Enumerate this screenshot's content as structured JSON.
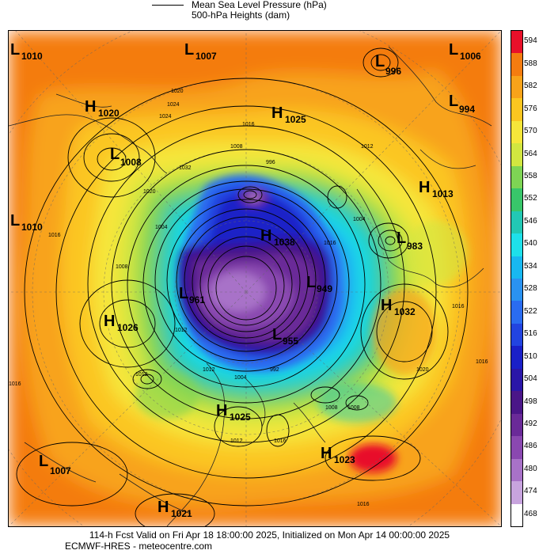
{
  "legend": {
    "line1": "Mean Sea Level Pressure (hPa)",
    "line2": "500-hPa Heights (dam)"
  },
  "colorbar": {
    "levels": [
      "594",
      "588",
      "582",
      "576",
      "570",
      "564",
      "558",
      "552",
      "546",
      "540",
      "534",
      "528",
      "522",
      "516",
      "510",
      "504",
      "498",
      "492",
      "486",
      "480",
      "474",
      "468"
    ],
    "colors": [
      "#e8102a",
      "#f47c10",
      "#f8a31a",
      "#fbc620",
      "#f6e63a",
      "#d2e640",
      "#7ed454",
      "#38c66a",
      "#22c8b4",
      "#1ee0ea",
      "#18b8f0",
      "#2a92f0",
      "#2a6cf0",
      "#2244e0",
      "#1a20c8",
      "#2a16a8",
      "#4a1688",
      "#6a2a98",
      "#8a48b0",
      "#a872c8",
      "#c8a4de",
      "#ffffff"
    ]
  },
  "systems": [
    {
      "type": "L",
      "value": "1010"
    },
    {
      "type": "L",
      "value": "1007"
    },
    {
      "type": "L",
      "value": "996"
    },
    {
      "type": "L",
      "value": "1006"
    },
    {
      "type": "H",
      "value": "1020"
    },
    {
      "type": "H",
      "value": "1025"
    },
    {
      "type": "L",
      "value": "994"
    },
    {
      "type": "L",
      "value": "1008"
    },
    {
      "type": "H",
      "value": "1013"
    },
    {
      "type": "L",
      "value": "1010"
    },
    {
      "type": "H",
      "value": "1038"
    },
    {
      "type": "L",
      "value": "983"
    },
    {
      "type": "L",
      "value": "961"
    },
    {
      "type": "L",
      "value": "949"
    },
    {
      "type": "H",
      "value": "1032"
    },
    {
      "type": "H",
      "value": "1026"
    },
    {
      "type": "L",
      "value": "955"
    },
    {
      "type": "H",
      "value": "1025"
    },
    {
      "type": "H",
      "value": "1023"
    },
    {
      "type": "L",
      "value": "1007"
    },
    {
      "type": "H",
      "value": "1021"
    }
  ],
  "isobar_labels": [
    "1020",
    "1024",
    "1032",
    "1016",
    "1008",
    "1012",
    "1016",
    "996",
    "1004",
    "1008",
    "1016",
    "1004",
    "1012",
    "1016",
    "1020",
    "1016",
    "1012",
    "1004",
    "1008",
    "992",
    "1012",
    "1016",
    "1008",
    "1016",
    "1020",
    "1024",
    "1012",
    "1016"
  ],
  "footer": {
    "line1": "114-h Fcst Valid on Fri Apr 18 18:00:00 2025, Initialized on Mon Apr 14 00:00:00 2025",
    "line2": "ECMWF-HRES - meteocentre.com"
  }
}
